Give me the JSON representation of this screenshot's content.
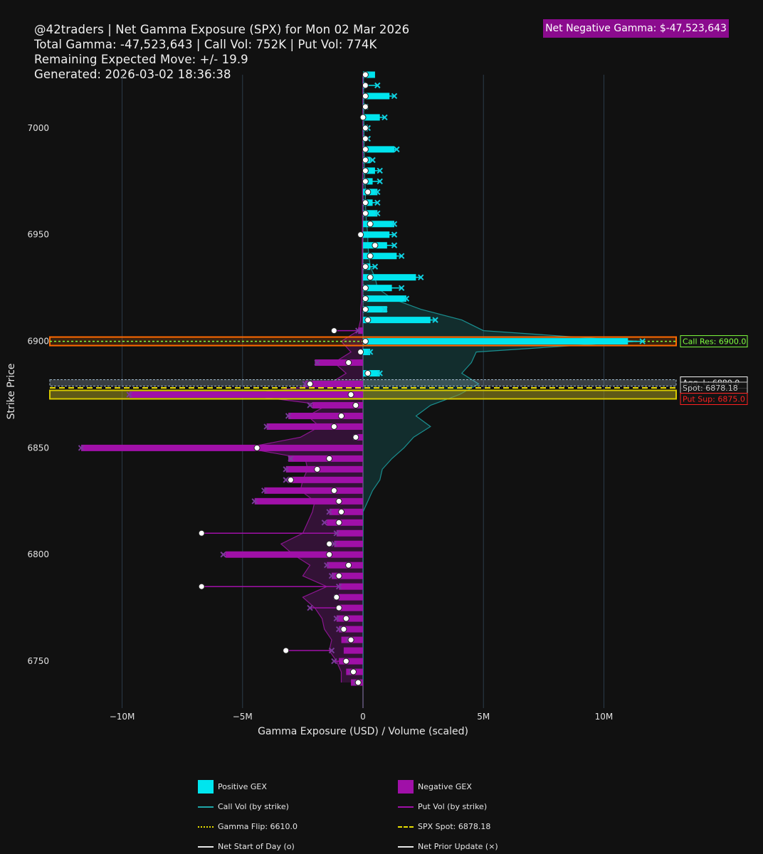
{
  "header": {
    "line1": "@42traders | Net Gamma Exposure (SPX) for Mon 02 Mar 2026",
    "line2": "Total Gamma: -47,523,643 | Call Vol: 752K | Put Vol: 774K",
    "line3": "Remaining Expected Move: +/- 19.9",
    "line4": "Generated: 2026-03-02 18:36:38"
  },
  "badge": {
    "text": "Net Negative Gamma: $-47,523,643",
    "color": "#8b0b8e"
  },
  "colors": {
    "positive": "#00e5ee",
    "negative": "#a010a8",
    "background": "#111111",
    "grid": "#2c3b4a",
    "callres": "#7fff3f",
    "spot": "#f0e000",
    "putsup": "#ff2020"
  },
  "chart_data": {
    "type": "bar",
    "orientation": "horizontal",
    "title": "Net Gamma Exposure (SPX)",
    "xlabel": "Gamma Exposure (USD) / Volume (scaled)",
    "ylabel": "Strike Price",
    "xlim": [
      -13000000,
      13000000
    ],
    "ylim": [
      6728,
      7025
    ],
    "x_ticks": [
      {
        "v": -10000000,
        "label": "−10M"
      },
      {
        "v": -5000000,
        "label": "−5M"
      },
      {
        "v": 0,
        "label": "0"
      },
      {
        "v": 5000000,
        "label": "5M"
      },
      {
        "v": 10000000,
        "label": "10M"
      }
    ],
    "y_ticks": [
      {
        "v": 6750,
        "label": "6750"
      },
      {
        "v": 6800,
        "label": "6800"
      },
      {
        "v": 6850,
        "label": "6850"
      },
      {
        "v": 6900,
        "label": "6900"
      },
      {
        "v": 6950,
        "label": "6950"
      },
      {
        "v": 7000,
        "label": "7000"
      }
    ],
    "strikes": [
      6740,
      6745,
      6750,
      6755,
      6760,
      6765,
      6770,
      6775,
      6780,
      6785,
      6790,
      6795,
      6800,
      6805,
      6810,
      6815,
      6820,
      6825,
      6830,
      6835,
      6840,
      6845,
      6850,
      6855,
      6860,
      6865,
      6870,
      6875,
      6880,
      6885,
      6890,
      6895,
      6900,
      6905,
      6910,
      6915,
      6920,
      6925,
      6930,
      6935,
      6940,
      6945,
      6950,
      6955,
      6960,
      6965,
      6970,
      6975,
      6980,
      6985,
      6990,
      6995,
      7000,
      7005,
      7010,
      7015,
      7020,
      7025
    ],
    "series": [
      {
        "name": "Net GEX",
        "values": [
          -500000,
          -700000,
          -1000000,
          -800000,
          -900000,
          -1000000,
          -1100000,
          -1000000,
          -1000000,
          -1000000,
          -1300000,
          -1500000,
          -5700000,
          -1200000,
          -1100000,
          -1500000,
          -1400000,
          -4500000,
          -4100000,
          -3100000,
          -3200000,
          -3100000,
          -11700000,
          -300000,
          -4000000,
          -3100000,
          -2100000,
          -9700000,
          -2400000,
          700000,
          -2000000,
          300000,
          11000000,
          -200000,
          2800000,
          1000000,
          1800000,
          1200000,
          2200000,
          300000,
          1400000,
          1000000,
          1100000,
          1300000,
          600000,
          400000,
          600000,
          400000,
          500000,
          300000,
          1300000,
          100000,
          200000,
          700000,
          100000,
          1100000,
          100000,
          500000
        ]
      },
      {
        "name": "Net Start of Day (o)",
        "values": [
          -200000,
          -400000,
          -700000,
          -3200000,
          -500000,
          -800000,
          -700000,
          -1000000,
          -1100000,
          -6700000,
          -1000000,
          -600000,
          -1400000,
          -1400000,
          -6700000,
          -1000000,
          -900000,
          -1000000,
          -1200000,
          -3000000,
          -1900000,
          -1400000,
          -4400000,
          -300000,
          -1200000,
          -900000,
          -300000,
          -500000,
          -2200000,
          200000,
          -600000,
          -100000,
          100000,
          -1200000,
          200000,
          100000,
          100000,
          100000,
          300000,
          100000,
          300000,
          500000,
          -100000,
          300000,
          100000,
          100000,
          200000,
          100000,
          100000,
          100000,
          100000,
          100000,
          100000,
          0,
          100000,
          100000,
          100000,
          100000
        ]
      },
      {
        "name": "Net Prior Update (x)",
        "values": [
          -300000,
          -500000,
          -1200000,
          -1300000,
          -600000,
          -1000000,
          -1100000,
          -2200000,
          -1100000,
          -1000000,
          -1300000,
          -1500000,
          -5800000,
          -1200000,
          -1100000,
          -1600000,
          -1400000,
          -4500000,
          -4100000,
          -3200000,
          -3200000,
          -3000000,
          -11700000,
          -300000,
          -4000000,
          -3100000,
          -2200000,
          -9700000,
          -2400000,
          700000,
          -1900000,
          300000,
          11600000,
          -200000,
          3000000,
          900000,
          1800000,
          1600000,
          2400000,
          500000,
          1600000,
          1300000,
          1300000,
          1300000,
          600000,
          600000,
          600000,
          700000,
          700000,
          400000,
          1400000,
          200000,
          200000,
          900000,
          100000,
          1300000,
          600000,
          200000
        ]
      },
      {
        "name": "Call Vol (by strike)",
        "values": [
          0,
          0,
          0,
          0,
          0,
          0,
          0,
          0,
          0,
          0,
          0,
          0,
          0,
          0,
          0,
          0,
          0,
          200000,
          400000,
          700000,
          800000,
          1200000,
          1700000,
          2100000,
          2800000,
          2200000,
          2800000,
          4000000,
          4800000,
          4100000,
          4500000,
          4700000,
          11400000,
          5000000,
          4100000,
          2400000,
          1200000,
          600000,
          500000,
          300000,
          250000,
          200000,
          200000,
          150000,
          120000,
          100000,
          100000,
          80000,
          60000,
          60000,
          50000,
          40000,
          40000,
          30000,
          30000,
          30000,
          20000,
          20000
        ]
      },
      {
        "name": "Put Vol (by strike)",
        "values": [
          -900000,
          -900000,
          -1100000,
          -1400000,
          -1300000,
          -1600000,
          -1700000,
          -2000000,
          -2500000,
          -1500000,
          -2500000,
          -2200000,
          -2900000,
          -3400000,
          -2500000,
          -2300000,
          -2100000,
          -2000000,
          -2600000,
          -2500000,
          -2300000,
          -2400000,
          -4900000,
          -2600000,
          -1800000,
          -2300000,
          -1500000,
          -5000000,
          -1400000,
          -700000,
          -1200000,
          -500000,
          -900000,
          -200000,
          -100000,
          -100000,
          -50000,
          -50000,
          -40000,
          -40000,
          -30000,
          -30000,
          -30000,
          -20000,
          -20000,
          -20000,
          -20000,
          -20000,
          -10000,
          -10000,
          -10000,
          -10000,
          -10000,
          -10000,
          -10000,
          -10000,
          -10000,
          -10000
        ]
      }
    ],
    "levels": {
      "call_res": {
        "value": 6900,
        "label": "Call Res: 6900.0"
      },
      "spot": {
        "value": 6878.18,
        "label": "Spot: 6878.18"
      },
      "put_sup": {
        "value": 6875,
        "label": "Put Sup: 6875.0"
      },
      "hvl": {
        "value": 6880,
        "label": "Agg. L: 6880.0"
      }
    },
    "legend": [
      {
        "name": "Positive GEX",
        "kind": "box",
        "color": "#00e5ee"
      },
      {
        "name": "Negative GEX",
        "kind": "box",
        "color": "#a010a8"
      },
      {
        "name": "Call Vol (by strike)",
        "kind": "line",
        "color": "#1fa7a8"
      },
      {
        "name": "Put Vol (by strike)",
        "kind": "line",
        "color": "#a010a8"
      },
      {
        "name": "Gamma Flip: 6610.0",
        "kind": "dot",
        "color": "#e8e000"
      },
      {
        "name": "SPX Spot: 6878.18",
        "kind": "dash",
        "color": "#e8e000"
      },
      {
        "name": "Net Start of Day (o)",
        "kind": "line",
        "color": "#e6e6e6"
      },
      {
        "name": "Net Prior Update (×)",
        "kind": "line",
        "color": "#e6e6e6"
      }
    ]
  }
}
